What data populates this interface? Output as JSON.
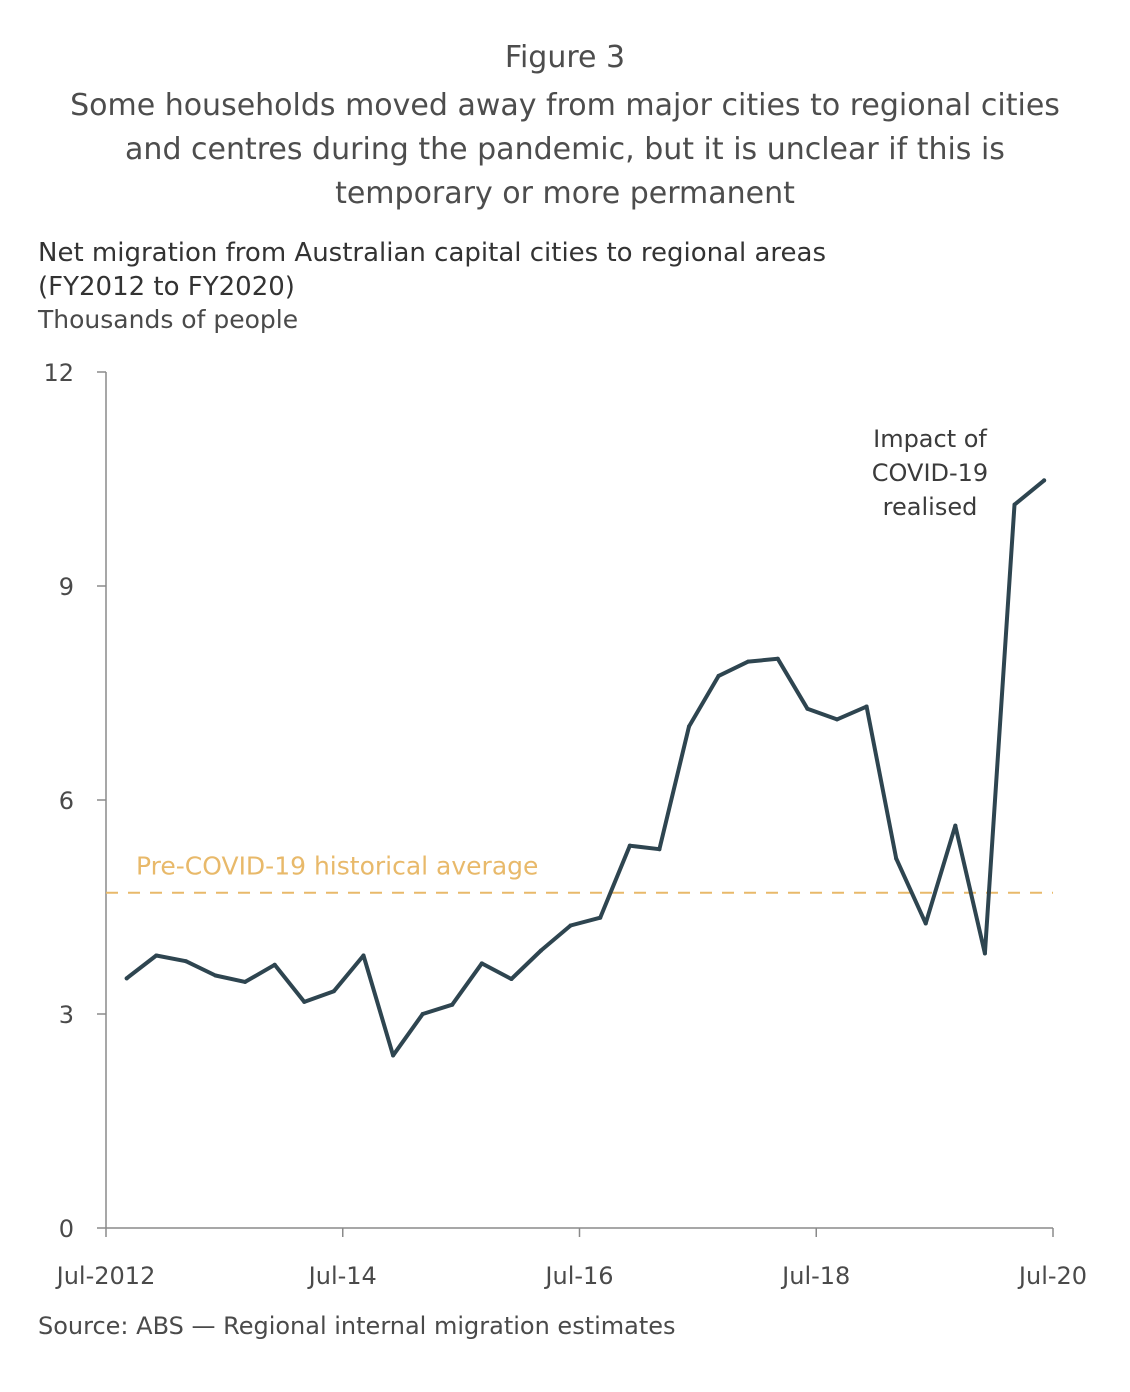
{
  "figure_label": "Figure 3",
  "figure_title": "Some households moved away from major cities to regional cities and centres during the pandemic, but it is unclear if this is temporary or more permanent",
  "source": "Source: ABS — Regional internal migration estimates",
  "colors": {
    "line": "#2e4550",
    "average": "#e8b96a",
    "axis": "#8a8a8a"
  },
  "chart_data": {
    "type": "line",
    "title": "Net migration from Australian capital cities to regional areas (FY2012 to FY2020)",
    "title_lines": [
      "Net migration from Australian capital cities to regional areas",
      "(FY2012 to FY2020)"
    ],
    "ylabel": "Thousands of people",
    "ylim": [
      0,
      12
    ],
    "yticks": [
      0,
      3,
      6,
      9,
      12
    ],
    "x_index_range": [
      0,
      32
    ],
    "xticks": [
      {
        "label": "Jul-2012",
        "index": 0
      },
      {
        "label": "Jul-14",
        "index": 8
      },
      {
        "label": "Jul-16",
        "index": 16
      },
      {
        "label": "Jul-18",
        "index": 24
      },
      {
        "label": "Jul-20",
        "index": 32
      }
    ],
    "series": [
      {
        "name": "Net migration",
        "x": [
          0.7,
          1.7,
          2.7,
          3.7,
          4.7,
          5.7,
          6.7,
          7.7,
          8.7,
          9.7,
          10.7,
          11.7,
          12.7,
          13.7,
          14.7,
          15.7,
          16.7,
          17.7,
          18.7,
          19.7,
          20.7,
          21.7,
          22.7,
          23.7,
          24.7,
          25.7,
          26.7,
          27.7,
          28.7,
          29.7,
          30.7,
          31.7
        ],
        "values": [
          3.5,
          3.82,
          3.74,
          3.54,
          3.45,
          3.69,
          3.17,
          3.32,
          3.82,
          2.42,
          3.0,
          3.13,
          3.71,
          3.49,
          3.89,
          4.24,
          4.35,
          5.36,
          5.31,
          7.03,
          7.74,
          7.94,
          7.98,
          7.28,
          7.13,
          7.31,
          5.18,
          4.27,
          5.64,
          3.85,
          10.14,
          10.48
        ]
      }
    ],
    "reference_line": {
      "label": "Pre-COVID-19 historical average",
      "value": 4.7
    },
    "annotation": {
      "lines": [
        "Impact of",
        "COVID-19",
        "realised"
      ]
    },
    "grid": false
  }
}
